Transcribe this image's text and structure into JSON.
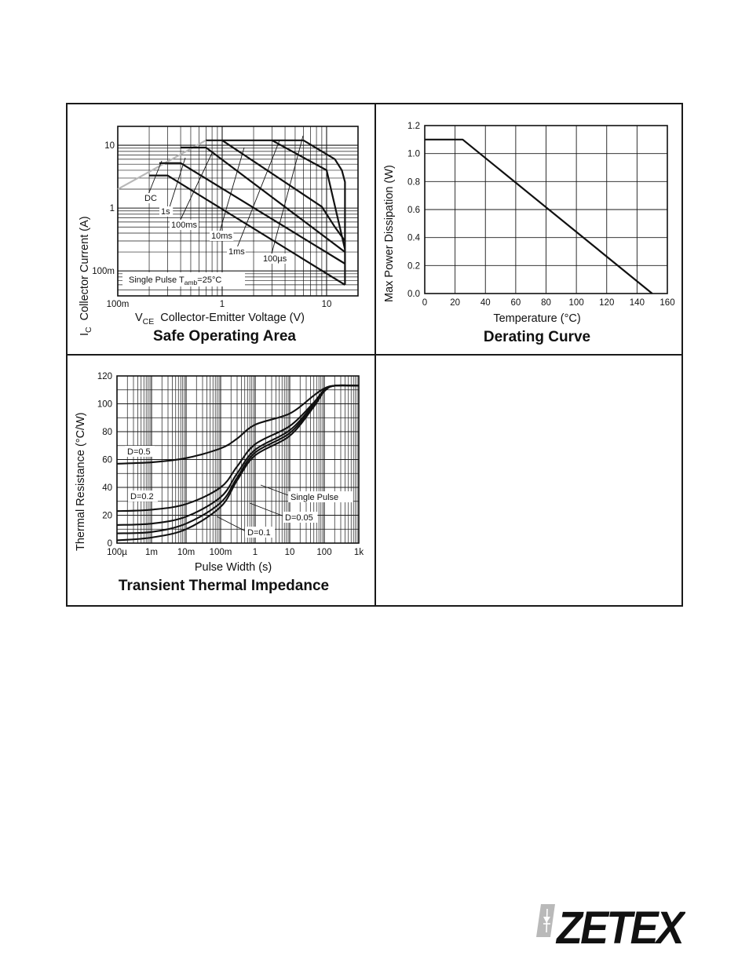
{
  "colors": {
    "ink": "#111111",
    "grid": "#1a1a1a",
    "soa_gray_segment": "#b8b8b8",
    "logo_bar": "#b9b9b9",
    "logo_text": "#111111"
  },
  "logo": {
    "text": "ZETEX",
    "icon": "diode-symbol-icon"
  },
  "chart_data": [
    {
      "type": "line",
      "title": "Safe Operating Area",
      "xlabel_main": "V",
      "xlabel_sub": "CE",
      "xlabel_rest": "Collector-Emitter Voltage (V)",
      "ylabel_main": "I",
      "ylabel_sub": "C",
      "ylabel_rest": "Collector Current (A)",
      "xscale": "log",
      "yscale": "log",
      "xlim": [
        0.1,
        20
      ],
      "ylim": [
        0.04,
        20
      ],
      "x_ticks": [
        0.1,
        1,
        10
      ],
      "x_tick_labels": [
        "100m",
        "1",
        "10"
      ],
      "y_ticks": [
        0.1,
        1,
        10
      ],
      "y_tick_labels": [
        "100m",
        "1",
        "10"
      ],
      "grid": true,
      "annotation": {
        "prefix": "Single Pulse  T",
        "sub": "amb",
        "suffix": "=25°C"
      },
      "series": [
        {
          "name": "DC",
          "points": [
            [
              0.2,
              3.3
            ],
            [
              0.3,
              3.3
            ],
            [
              15,
              0.06
            ]
          ]
        },
        {
          "name": "1s",
          "points": [
            [
              0.25,
              5.2
            ],
            [
              0.4,
              5.2
            ],
            [
              15,
              0.13
            ]
          ]
        },
        {
          "name": "100ms",
          "points": [
            [
              0.4,
              9.2
            ],
            [
              0.7,
              9.2
            ],
            [
              15,
              0.2
            ]
          ]
        },
        {
          "name": "10ms",
          "points": [
            [
              0.7,
              12
            ],
            [
              1.0,
              12
            ],
            [
              9,
              1.05
            ],
            [
              12,
              0.5
            ],
            [
              15,
              0.3
            ]
          ]
        },
        {
          "name": "1ms",
          "points": [
            [
              1.0,
              12
            ],
            [
              3.0,
              12
            ],
            [
              10,
              4.0
            ],
            [
              15,
              0.22
            ]
          ]
        },
        {
          "name": "100µs",
          "points": [
            [
              3.0,
              12
            ],
            [
              6.0,
              12
            ],
            [
              12,
              6.0
            ],
            [
              14,
              4.0
            ],
            [
              15,
              2.6
            ],
            [
              15,
              0.06
            ]
          ]
        }
      ],
      "gray_segment": [
        [
          0.1,
          2.0
        ],
        [
          0.7,
          12
        ]
      ]
    },
    {
      "type": "line",
      "title": "Derating Curve",
      "xlabel": "Temperature (°C)",
      "ylabel": "Max Power Dissipation (W)",
      "xlim": [
        0,
        160
      ],
      "ylim": [
        0,
        1.2
      ],
      "x_ticks": [
        0,
        20,
        40,
        60,
        80,
        100,
        120,
        140,
        160
      ],
      "x_tick_labels": [
        "0",
        "20",
        "40",
        "60",
        "80",
        "100",
        "120",
        "140",
        "160"
      ],
      "y_ticks": [
        0,
        0.2,
        0.4,
        0.6,
        0.8,
        1.0,
        1.2
      ],
      "y_tick_labels": [
        "0.0",
        "0.2",
        "0.4",
        "0.6",
        "0.8",
        "1.0",
        "1.2"
      ],
      "grid": true,
      "series": [
        {
          "x": [
            0,
            25,
            150
          ],
          "y": [
            1.1,
            1.1,
            0.0
          ]
        }
      ]
    },
    {
      "type": "line",
      "title": "Transient Thermal Impedance",
      "xlabel": "Pulse Width (s)",
      "ylabel": "Thermal Resistance (°C/W)",
      "xscale": "log",
      "xlim": [
        0.0001,
        1000
      ],
      "ylim": [
        0,
        120
      ],
      "x_ticks": [
        0.0001,
        0.001,
        0.01,
        0.1,
        1,
        10,
        100,
        1000
      ],
      "x_tick_labels": [
        "100µ",
        "1m",
        "10m",
        "100m",
        "1",
        "10",
        "100",
        "1k"
      ],
      "y_ticks": [
        0,
        20,
        40,
        60,
        80,
        100,
        120
      ],
      "y_tick_labels": [
        "0",
        "20",
        "40",
        "60",
        "80",
        "100",
        "120"
      ],
      "grid": true,
      "series": [
        {
          "name": "D=0.5",
          "points": [
            [
              0.0001,
              57
            ],
            [
              0.001,
              58
            ],
            [
              0.01,
              61
            ],
            [
              0.1,
              68
            ],
            [
              0.3,
              75
            ],
            [
              1,
              85
            ],
            [
              10,
              93
            ],
            [
              50,
              106
            ],
            [
              100,
              111
            ],
            [
              200,
              113
            ],
            [
              1000,
              113
            ]
          ]
        },
        {
          "name": "D=0.2",
          "points": [
            [
              0.0001,
              23
            ],
            [
              0.001,
              24
            ],
            [
              0.01,
              28
            ],
            [
              0.1,
              40
            ],
            [
              0.3,
              55
            ],
            [
              1,
              71
            ],
            [
              10,
              84
            ],
            [
              50,
              101
            ],
            [
              100,
              110
            ],
            [
              200,
              113
            ],
            [
              1000,
              113
            ]
          ]
        },
        {
          "name": "D=0.1",
          "points": [
            [
              0.0001,
              13
            ],
            [
              0.001,
              14
            ],
            [
              0.01,
              19
            ],
            [
              0.1,
              33
            ],
            [
              0.3,
              50
            ],
            [
              1,
              67
            ],
            [
              10,
              81
            ],
            [
              50,
              100
            ],
            [
              100,
              110
            ],
            [
              200,
              113
            ],
            [
              1000,
              113
            ]
          ]
        },
        {
          "name": "D=0.05",
          "points": [
            [
              0.0001,
              7
            ],
            [
              0.001,
              8
            ],
            [
              0.01,
              14
            ],
            [
              0.1,
              29
            ],
            [
              0.3,
              47
            ],
            [
              1,
              65
            ],
            [
              10,
              79
            ],
            [
              50,
              99
            ],
            [
              100,
              109
            ],
            [
              200,
              113
            ],
            [
              1000,
              113
            ]
          ]
        },
        {
          "name": "Single Pulse",
          "points": [
            [
              0.0001,
              2
            ],
            [
              0.001,
              4
            ],
            [
              0.01,
              10
            ],
            [
              0.1,
              26
            ],
            [
              0.3,
              45
            ],
            [
              1,
              63
            ],
            [
              10,
              77
            ],
            [
              50,
              98
            ],
            [
              100,
              109
            ],
            [
              200,
              113
            ],
            [
              1000,
              113
            ]
          ]
        }
      ]
    }
  ]
}
